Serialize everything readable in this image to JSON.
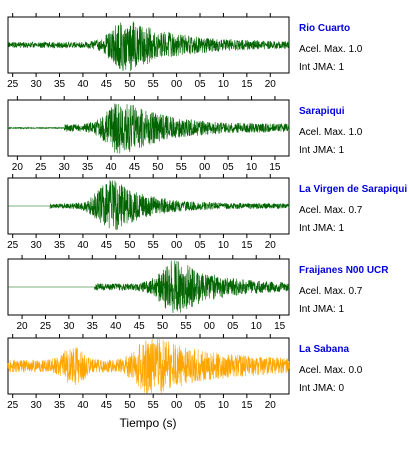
{
  "figure": {
    "xlabel": "Tiempo (s)",
    "name_color": "#0000dd",
    "default_trace_color": "#006400"
  },
  "chart_data": [
    {
      "type": "line",
      "station": "Rio Cuarto",
      "max_accel_label": "Acel. Max. 1.0",
      "jma_label": "Int JMA: 1",
      "color": "#006400",
      "tick_labels": [
        "25",
        "30",
        "35",
        "40",
        "45",
        "50",
        "55",
        "00",
        "05",
        "10",
        "15",
        "20"
      ],
      "xlim_seconds": [
        24,
        84
      ],
      "first_tick_seconds": 25,
      "onset_seconds": 24,
      "peak_seconds": 49.5,
      "decay_seconds": 10,
      "noise_level": 0.12,
      "pre_noise_level": 0.08,
      "amplitude": 0.95,
      "seed": 11
    },
    {
      "type": "line",
      "station": "Sarapiqui",
      "max_accel_label": "Acel. Max. 1.0",
      "jma_label": "Int JMA: 1",
      "color": "#006400",
      "tick_labels": [
        "20",
        "25",
        "30",
        "35",
        "40",
        "45",
        "50",
        "55",
        "00",
        "05",
        "10",
        "15"
      ],
      "xlim_seconds": [
        18,
        78
      ],
      "first_tick_seconds": 20,
      "onset_seconds": 30,
      "peak_seconds": 42.5,
      "decay_seconds": 9,
      "noise_level": 0.15,
      "pre_noise_level": 0.02,
      "amplitude": 0.95,
      "seed": 23
    },
    {
      "type": "line",
      "station": "La Virgen de Sarapiqui",
      "max_accel_label": "Acel. Max. 0.7",
      "jma_label": "Int JMA: 1",
      "color": "#006400",
      "tick_labels": [
        "25",
        "30",
        "35",
        "40",
        "45",
        "50",
        "55",
        "00",
        "05",
        "10",
        "15",
        "20"
      ],
      "xlim_seconds": [
        24,
        84
      ],
      "first_tick_seconds": 25,
      "onset_seconds": 33,
      "peak_seconds": 46.5,
      "decay_seconds": 7,
      "noise_level": 0.1,
      "pre_noise_level": 0.0,
      "amplitude": 0.95,
      "seed": 37
    },
    {
      "type": "line",
      "station": "Fraijanes N00 UCR",
      "max_accel_label": "Acel. Max. 0.7",
      "jma_label": "Int JMA: 1",
      "color": "#006400",
      "tick_labels": [
        "20",
        "25",
        "30",
        "35",
        "40",
        "45",
        "50",
        "55",
        "00",
        "05",
        "10",
        "15"
      ],
      "xlim_seconds": [
        17,
        77
      ],
      "first_tick_seconds": 20,
      "onset_seconds": 35.5,
      "peak_seconds": 53,
      "decay_seconds": 8,
      "noise_level": 0.14,
      "pre_noise_level": 0.0,
      "amplitude": 0.97,
      "seed": 53
    },
    {
      "type": "line",
      "station": "La Sabana",
      "max_accel_label": "Acel. Max. 0.0",
      "jma_label": "Int JMA: 0",
      "color": "#ffa500",
      "tick_labels": [
        "25",
        "30",
        "35",
        "40",
        "45",
        "50",
        "55",
        "00",
        "05",
        "10",
        "15",
        "20"
      ],
      "xlim_seconds": [
        24,
        84
      ],
      "first_tick_seconds": 25,
      "onset_seconds": 24,
      "peak_seconds": 55,
      "decay_seconds": 11,
      "noise_level": 0.25,
      "pre_noise_level": 0.12,
      "amplitude": 0.97,
      "seed": 71,
      "extra_burst_seconds": 38
    }
  ]
}
